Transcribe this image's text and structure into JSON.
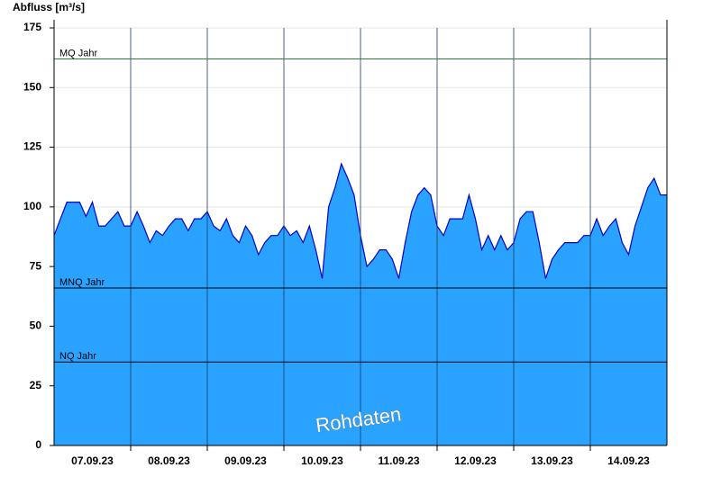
{
  "chart_data": {
    "type": "area",
    "y_label": "Abfluss [m³/s]",
    "watermark": "Rohdaten",
    "categories": [
      null,
      null,
      null,
      null,
      null,
      null,
      "07.09.23",
      null,
      null,
      null,
      null,
      null,
      null,
      null,
      null,
      null,
      null,
      null,
      "08.09.23",
      null,
      null,
      null,
      null,
      null,
      null,
      null,
      null,
      null,
      null,
      null,
      "09.09.23",
      null,
      null,
      null,
      null,
      null,
      null,
      null,
      null,
      null,
      null,
      null,
      "10.09.23",
      null,
      null,
      null,
      null,
      null,
      null,
      null,
      null,
      null,
      null,
      null,
      "11.09.23",
      null,
      null,
      null,
      null,
      null,
      null,
      null,
      null,
      null,
      null,
      null,
      "12.09.23",
      null,
      null,
      null,
      null,
      null,
      null,
      null,
      null,
      null,
      null,
      null,
      "13.09.23",
      null,
      null,
      null,
      null,
      null,
      null,
      null,
      null,
      null,
      null,
      null,
      "14.09.23",
      null,
      null,
      null,
      null,
      null
    ],
    "series": [
      {
        "name": "Abfluss",
        "color": "#29a3ff",
        "line_color": "#0000cc",
        "values": [
          88,
          95,
          102,
          102,
          102,
          96,
          102,
          92,
          92,
          95,
          98,
          92,
          92,
          98,
          92,
          85,
          90,
          88,
          92,
          95,
          95,
          90,
          95,
          95,
          98,
          92,
          90,
          95,
          88,
          85,
          92,
          88,
          80,
          85,
          88,
          88,
          92,
          88,
          90,
          85,
          92,
          82,
          70,
          100,
          108,
          118,
          112,
          105,
          88,
          75,
          78,
          82,
          82,
          78,
          70,
          85,
          98,
          105,
          108,
          105,
          92,
          88,
          95,
          95,
          95,
          105,
          95,
          82,
          88,
          82,
          88,
          82,
          85,
          95,
          98,
          98,
          85,
          70,
          78,
          82,
          85,
          85,
          85,
          88,
          88,
          95,
          88,
          92,
          95,
          85,
          80,
          92,
          100,
          108,
          112,
          105
        ]
      }
    ],
    "reference_lines": [
      {
        "label": "MQ Jahr",
        "value": 162,
        "color": "#2e7d32"
      },
      {
        "label": "MNQ Jahr",
        "value": 66,
        "color": "#000000"
      },
      {
        "label": "NQ Jahr",
        "value": 35,
        "color": "#000000"
      }
    ],
    "ylim": [
      0,
      175
    ],
    "yticks": [
      0,
      25,
      50,
      75,
      100,
      125,
      150,
      175
    ],
    "grid": true
  }
}
